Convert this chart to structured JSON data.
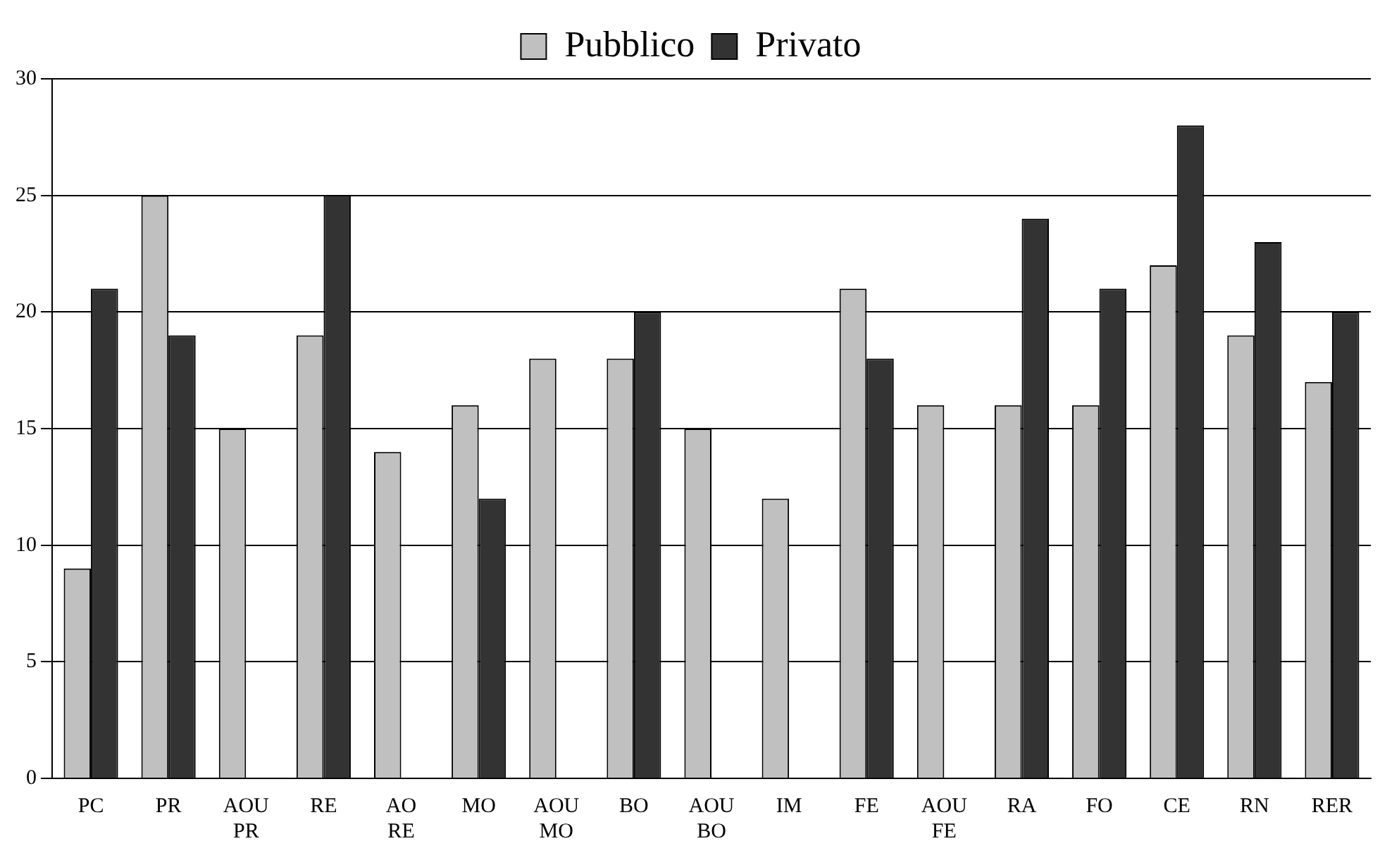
{
  "chart_data": {
    "type": "bar",
    "categories": [
      "PC",
      "PR",
      "AOU PR",
      "RE",
      "AO RE",
      "MO",
      "AOU MO",
      "BO",
      "AOU BO",
      "IM",
      "FE",
      "AOU FE",
      "RA",
      "FO",
      "CE",
      "RN",
      "RER"
    ],
    "series": [
      {
        "name": "Pubblico",
        "color": "#c0c0c0",
        "values": [
          9,
          25,
          15,
          19,
          14,
          16,
          18,
          18,
          15,
          12,
          21,
          16,
          16,
          16,
          22,
          19,
          17
        ]
      },
      {
        "name": "Privato",
        "color": "#333333",
        "values": [
          21,
          19,
          null,
          25,
          null,
          12,
          null,
          20,
          null,
          null,
          18,
          null,
          24,
          21,
          28,
          23,
          20
        ]
      }
    ],
    "ylim": [
      0,
      30
    ],
    "yticks": [
      0,
      5,
      10,
      15,
      20,
      25,
      30
    ],
    "grid": "y",
    "legend": "top"
  }
}
